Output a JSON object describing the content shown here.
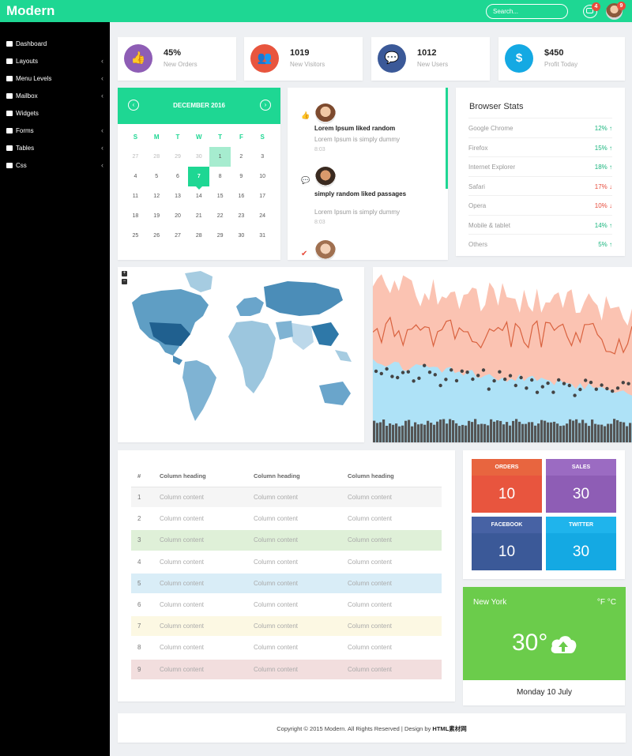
{
  "app": {
    "logo": "Modern"
  },
  "topbar": {
    "search_placeholder": "Search...",
    "messages_badge": "4",
    "profile_badge": "9"
  },
  "sidebar": {
    "items": [
      {
        "label": "Dashboard",
        "icon": "dashboard-icon",
        "has_submenu": false
      },
      {
        "label": "Layouts",
        "icon": "laptop-icon",
        "has_submenu": true
      },
      {
        "label": "Menu Levels",
        "icon": "list-icon",
        "has_submenu": true
      },
      {
        "label": "Mailbox",
        "icon": "envelope-icon",
        "has_submenu": true
      },
      {
        "label": "Widgets",
        "icon": "user-icon",
        "has_submenu": false
      },
      {
        "label": "Forms",
        "icon": "check-square-icon",
        "has_submenu": true
      },
      {
        "label": "Tables",
        "icon": "table-icon",
        "has_submenu": true
      },
      {
        "label": "Css",
        "icon": "sitemap-icon",
        "has_submenu": true
      }
    ]
  },
  "stats": [
    {
      "value": "45%",
      "label": "New Orders",
      "icon": "thumbs-up-icon",
      "color": "#8e5db5"
    },
    {
      "value": "1019",
      "label": "New Visitors",
      "icon": "users-icon",
      "color": "#e8553e"
    },
    {
      "value": "1012",
      "label": "New Users",
      "icon": "comment-icon",
      "color": "#3b5998"
    },
    {
      "value": "$450",
      "label": "Profit Today",
      "icon": "dollar-icon",
      "color": "#14a9e3"
    }
  ],
  "calendar": {
    "title": "DECEMBER 2016",
    "prev": "‹",
    "next": "›",
    "day_names": [
      "S",
      "M",
      "T",
      "W",
      "T",
      "F",
      "S"
    ],
    "weeks": [
      [
        "27",
        "28",
        "29",
        "30",
        "1",
        "2",
        "3"
      ],
      [
        "4",
        "5",
        "6",
        "7",
        "8",
        "9",
        "10"
      ],
      [
        "11",
        "12",
        "13",
        "14",
        "15",
        "16",
        "17"
      ],
      [
        "18",
        "19",
        "20",
        "21",
        "22",
        "23",
        "24"
      ],
      [
        "25",
        "26",
        "27",
        "28",
        "29",
        "30",
        "31"
      ]
    ],
    "selected_day": "7",
    "highlighted_day": "1"
  },
  "activity": [
    {
      "title": "Lorem Ipsum liked random",
      "text": "Lorem Ipsum is simply dummy",
      "time": "8:03",
      "icon": "thumbs-up-icon"
    },
    {
      "title": "simply random liked passages",
      "text": "Lorem Ipsum is simply dummy",
      "time": "8:03",
      "icon": "comment-icon"
    },
    {
      "title": "",
      "text": "",
      "time": "",
      "icon": "check-icon"
    }
  ],
  "browser_stats": {
    "title": "Browser Stats",
    "rows": [
      {
        "name": "Google Chrome",
        "value": "12%",
        "trend": "up"
      },
      {
        "name": "Firefox",
        "value": "15%",
        "trend": "up"
      },
      {
        "name": "Internet Explorer",
        "value": "18%",
        "trend": "up"
      },
      {
        "name": "Safari",
        "value": "17%",
        "trend": "down"
      },
      {
        "name": "Opera",
        "value": "10%",
        "trend": "down"
      },
      {
        "name": "Mobile & tablet",
        "value": "14%",
        "trend": "up"
      },
      {
        "name": "Others",
        "value": "5%",
        "trend": "up"
      }
    ]
  },
  "map": {
    "zoom_in": "+",
    "zoom_out": "−"
  },
  "table": {
    "headers": [
      "#",
      "Column heading",
      "Column heading",
      "Column heading"
    ],
    "rows": [
      {
        "n": "1",
        "cells": [
          "Column content",
          "Column content",
          "Column content"
        ],
        "style": "active"
      },
      {
        "n": "2",
        "cells": [
          "Column content",
          "Column content",
          "Column content"
        ],
        "style": ""
      },
      {
        "n": "3",
        "cells": [
          "Column content",
          "Column content",
          "Column content"
        ],
        "style": "success"
      },
      {
        "n": "4",
        "cells": [
          "Column content",
          "Column content",
          "Column content"
        ],
        "style": ""
      },
      {
        "n": "5",
        "cells": [
          "Column content",
          "Column content",
          "Column content"
        ],
        "style": "info"
      },
      {
        "n": "6",
        "cells": [
          "Column content",
          "Column content",
          "Column content"
        ],
        "style": ""
      },
      {
        "n": "7",
        "cells": [
          "Column content",
          "Column content",
          "Column content"
        ],
        "style": "warning"
      },
      {
        "n": "8",
        "cells": [
          "Column content",
          "Column content",
          "Column content"
        ],
        "style": ""
      },
      {
        "n": "9",
        "cells": [
          "Column content",
          "Column content",
          "Column content"
        ],
        "style": "danger"
      }
    ]
  },
  "tiles": [
    {
      "title": "ORDERS",
      "value": "10",
      "head": "#e8653f",
      "body": "#e8553e"
    },
    {
      "title": "SALES",
      "value": "30",
      "head": "#9b6bc2",
      "body": "#8e5db5"
    },
    {
      "title": "FACEBOOK",
      "value": "10",
      "head": "#4762a4",
      "body": "#3b5998"
    },
    {
      "title": "TWITTER",
      "value": "30",
      "head": "#1fb4ec",
      "body": "#14a9e3"
    }
  ],
  "weather": {
    "city": "New York",
    "units": "°F °C",
    "temp": "30°",
    "icon": "cloud-upload-icon",
    "date": "Monday 10 July"
  },
  "footer": {
    "text": "Copyright © 2015 Modern. All Rights Reserved | Design by ",
    "link": "HTML素材网"
  }
}
